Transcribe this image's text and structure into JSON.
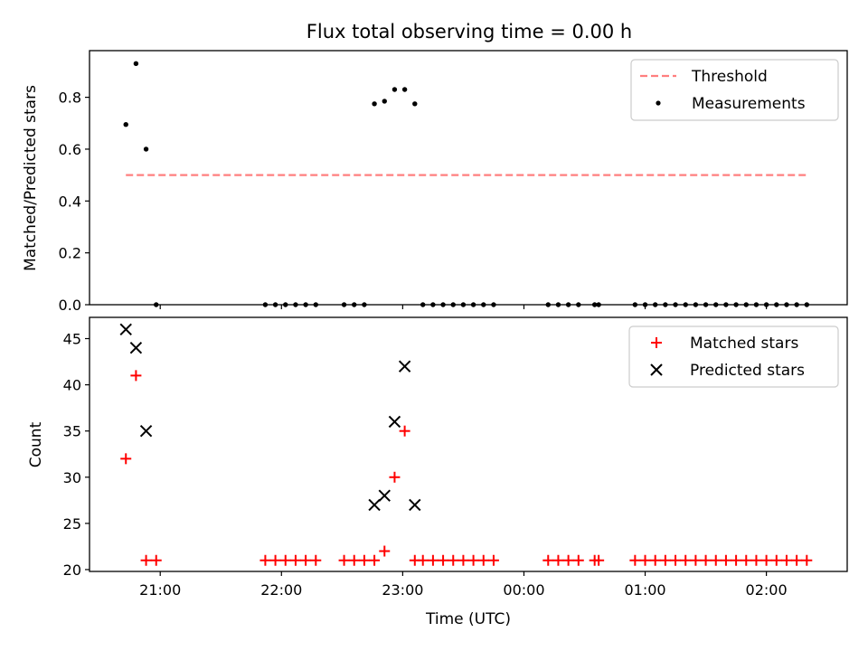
{
  "title": "Flux total observing time = 0.00 h",
  "xlabel": "Time (UTC)",
  "x_ticks": [
    "21:00",
    "22:00",
    "23:00",
    "00:00",
    "01:00",
    "02:00"
  ],
  "colors": {
    "threshold": "#ff7f7f",
    "measurements": "#000000",
    "matched": "#ff0000",
    "predicted": "#000000"
  },
  "chart_data": [
    {
      "type": "scatter",
      "ylabel": "Matched/Predicted stars",
      "x_axis": "time (UTC), minutes after 20:00 (next-day times continue past 24:00)",
      "xlim": [
        "20:25",
        "02:40"
      ],
      "ylim": [
        0.0,
        0.98
      ],
      "y_ticks": [
        "0.0",
        "0.2",
        "0.4",
        "0.6",
        "0.8"
      ],
      "y_tick_values": [
        0.0,
        0.2,
        0.4,
        0.6,
        0.8
      ],
      "legend": {
        "placement": "top-right",
        "entries": [
          "Threshold",
          "Measurements"
        ]
      },
      "threshold": {
        "name": "Threshold",
        "y": 0.5,
        "x_start": "20:43",
        "x_end": "02:20",
        "style": "dashed"
      },
      "series": [
        {
          "name": "Measurements",
          "points": [
            [
              "20:43",
              0.695
            ],
            [
              "20:48",
              0.93
            ],
            [
              "20:53",
              0.6
            ],
            [
              "20:58",
              0.0
            ],
            [
              "21:52",
              0.0
            ],
            [
              "21:57",
              0.0
            ],
            [
              "22:02",
              0.0
            ],
            [
              "22:07",
              0.0
            ],
            [
              "22:12",
              0.0
            ],
            [
              "22:17",
              0.0
            ],
            [
              "22:31",
              0.0
            ],
            [
              "22:36",
              0.0
            ],
            [
              "22:41",
              0.0
            ],
            [
              "22:46",
              0.775
            ],
            [
              "22:51",
              0.785
            ],
            [
              "22:56",
              0.83
            ],
            [
              "23:01",
              0.83
            ],
            [
              "23:06",
              0.775
            ],
            [
              "23:10",
              0.0
            ],
            [
              "23:15",
              0.0
            ],
            [
              "23:20",
              0.0
            ],
            [
              "23:25",
              0.0
            ],
            [
              "23:30",
              0.0
            ],
            [
              "23:35",
              0.0
            ],
            [
              "23:40",
              0.0
            ],
            [
              "23:45",
              0.0
            ],
            [
              "00:12",
              0.0
            ],
            [
              "00:17",
              0.0
            ],
            [
              "00:22",
              0.0
            ],
            [
              "00:27",
              0.0
            ],
            [
              "00:35",
              0.0
            ],
            [
              "00:37",
              0.0
            ],
            [
              "00:55",
              0.0
            ],
            [
              "01:00",
              0.0
            ],
            [
              "01:05",
              0.0
            ],
            [
              "01:10",
              0.0
            ],
            [
              "01:15",
              0.0
            ],
            [
              "01:20",
              0.0
            ],
            [
              "01:25",
              0.0
            ],
            [
              "01:30",
              0.0
            ],
            [
              "01:35",
              0.0
            ],
            [
              "01:40",
              0.0
            ],
            [
              "01:45",
              0.0
            ],
            [
              "01:50",
              0.0
            ],
            [
              "01:55",
              0.0
            ],
            [
              "02:00",
              0.0
            ],
            [
              "02:05",
              0.0
            ],
            [
              "02:10",
              0.0
            ],
            [
              "02:15",
              0.0
            ],
            [
              "02:20",
              0.0
            ]
          ]
        }
      ]
    },
    {
      "type": "scatter",
      "ylabel": "Count",
      "xlabel": "Time (UTC)",
      "xlim": [
        "20:25",
        "02:40"
      ],
      "ylim": [
        19.8,
        47.3
      ],
      "y_ticks": [
        "20",
        "25",
        "30",
        "35",
        "40",
        "45"
      ],
      "y_tick_values": [
        20,
        25,
        30,
        35,
        40,
        45
      ],
      "legend": {
        "placement": "top-right",
        "entries": [
          "Matched stars",
          "Predicted stars"
        ]
      },
      "series": [
        {
          "name": "Matched stars",
          "marker": "+",
          "points": [
            [
              "20:43",
              32
            ],
            [
              "20:48",
              41
            ],
            [
              "20:53",
              21
            ],
            [
              "20:58",
              21
            ],
            [
              "21:52",
              21
            ],
            [
              "21:57",
              21
            ],
            [
              "22:02",
              21
            ],
            [
              "22:07",
              21
            ],
            [
              "22:12",
              21
            ],
            [
              "22:17",
              21
            ],
            [
              "22:31",
              21
            ],
            [
              "22:36",
              21
            ],
            [
              "22:41",
              21
            ],
            [
              "22:46",
              21
            ],
            [
              "22:51",
              22
            ],
            [
              "22:56",
              30
            ],
            [
              "23:01",
              35
            ],
            [
              "23:06",
              21
            ],
            [
              "23:10",
              21
            ],
            [
              "23:15",
              21
            ],
            [
              "23:20",
              21
            ],
            [
              "23:25",
              21
            ],
            [
              "23:30",
              21
            ],
            [
              "23:35",
              21
            ],
            [
              "23:40",
              21
            ],
            [
              "23:45",
              21
            ],
            [
              "00:12",
              21
            ],
            [
              "00:17",
              21
            ],
            [
              "00:22",
              21
            ],
            [
              "00:27",
              21
            ],
            [
              "00:35",
              21
            ],
            [
              "00:37",
              21
            ],
            [
              "00:55",
              21
            ],
            [
              "01:00",
              21
            ],
            [
              "01:05",
              21
            ],
            [
              "01:10",
              21
            ],
            [
              "01:15",
              21
            ],
            [
              "01:20",
              21
            ],
            [
              "01:25",
              21
            ],
            [
              "01:30",
              21
            ],
            [
              "01:35",
              21
            ],
            [
              "01:40",
              21
            ],
            [
              "01:45",
              21
            ],
            [
              "01:50",
              21
            ],
            [
              "01:55",
              21
            ],
            [
              "02:00",
              21
            ],
            [
              "02:05",
              21
            ],
            [
              "02:10",
              21
            ],
            [
              "02:15",
              21
            ],
            [
              "02:20",
              21
            ]
          ]
        },
        {
          "name": "Predicted stars",
          "marker": "x",
          "points": [
            [
              "20:43",
              46
            ],
            [
              "20:48",
              44
            ],
            [
              "20:53",
              35
            ],
            [
              "22:46",
              27
            ],
            [
              "22:51",
              28
            ],
            [
              "22:56",
              36
            ],
            [
              "23:01",
              42
            ],
            [
              "23:06",
              27
            ]
          ]
        }
      ]
    }
  ]
}
